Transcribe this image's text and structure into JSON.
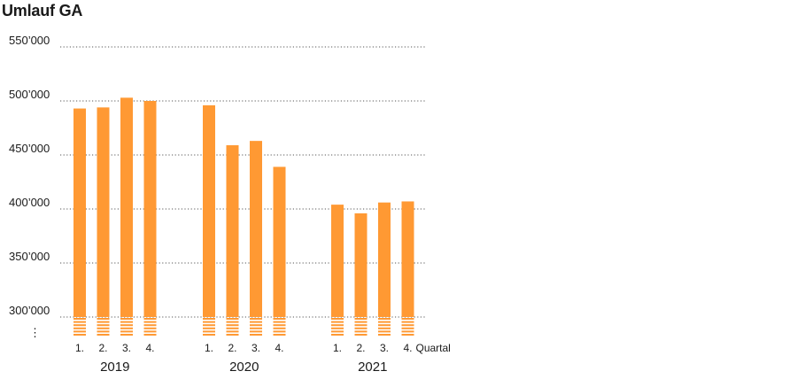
{
  "title": "Umlauf GA",
  "colors": {
    "bar": "#ff9933",
    "grid": "#555555",
    "text": "#1a1a1a"
  },
  "chart_data": {
    "type": "bar",
    "title": "Umlauf GA",
    "y_ticks": [
      "550’000",
      "500’000",
      "450’000",
      "400’000",
      "350’000",
      "300’000"
    ],
    "y_tick_values": [
      550000,
      500000,
      450000,
      400000,
      350000,
      300000
    ],
    "ylim": [
      300000,
      550000
    ],
    "y_axis_break": "⋮",
    "grid": "horizontal-dotted",
    "quarter_suffix": "Quartal",
    "groups": [
      {
        "year": "2019",
        "quarters": [
          "1.",
          "2.",
          "3.",
          "4."
        ],
        "values": [
          493000,
          494000,
          503000,
          500000
        ]
      },
      {
        "year": "2020",
        "quarters": [
          "1.",
          "2.",
          "3.",
          "4."
        ],
        "values": [
          496000,
          459000,
          463000,
          439000
        ]
      },
      {
        "year": "2021",
        "quarters": [
          "1.",
          "2.",
          "3.",
          "4."
        ],
        "values": [
          404000,
          396000,
          406000,
          407000
        ]
      }
    ]
  }
}
